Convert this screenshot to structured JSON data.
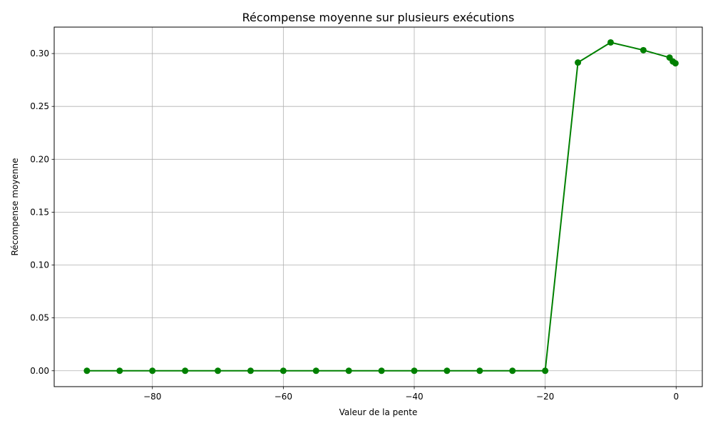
{
  "chart_data": {
    "type": "line",
    "title": "Récompense moyenne sur plusieurs exécutions",
    "xlabel": "Valeur de la pente",
    "ylabel": "Récompense moyenne",
    "xlim": [
      -95,
      4
    ],
    "ylim": [
      -0.015,
      0.325
    ],
    "xticks": [
      -80,
      -60,
      -40,
      -20,
      0
    ],
    "xtick_labels": [
      "−80",
      "−60",
      "−40",
      "−20",
      "0"
    ],
    "yticks": [
      0.0,
      0.05,
      0.1,
      0.15,
      0.2,
      0.25,
      0.3
    ],
    "ytick_labels": [
      "0.00",
      "0.05",
      "0.10",
      "0.15",
      "0.20",
      "0.25",
      "0.30"
    ],
    "grid": true,
    "legend": "none",
    "series": [
      {
        "color": "#008000",
        "marker": "circle",
        "x": [
          -90,
          -85,
          -80,
          -75,
          -70,
          -65,
          -60,
          -55,
          -50,
          -45,
          -40,
          -35,
          -30,
          -25,
          -20,
          -15,
          -10,
          -5,
          -1,
          -0.5,
          -0.1
        ],
        "y": [
          0,
          0,
          0,
          0,
          0,
          0,
          0,
          0,
          0,
          0,
          0,
          0,
          0,
          0,
          0,
          0.2915,
          0.3105,
          0.3032,
          0.2962,
          0.2925,
          0.2908
        ]
      }
    ]
  }
}
